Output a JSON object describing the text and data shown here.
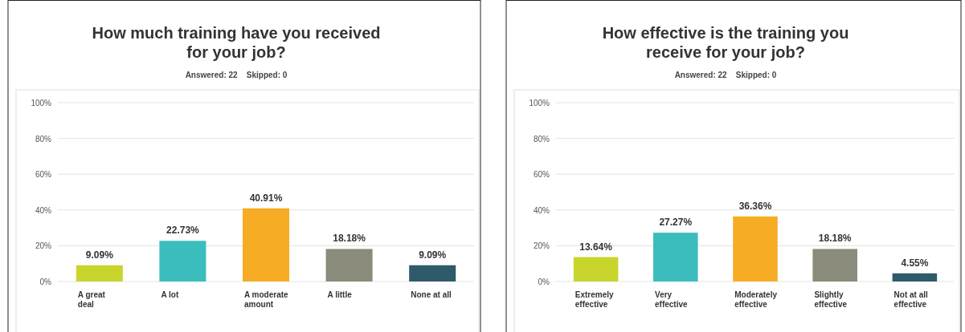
{
  "chart_data": [
    {
      "type": "bar",
      "title": "How much training have you received for your job?",
      "subtitle": "Answered: 22    Skipped: 0",
      "categories": [
        "A great deal",
        "A lot",
        "A moderate amount",
        "A little",
        "None at all"
      ],
      "values": [
        9.09,
        22.73,
        40.91,
        18.18,
        9.09
      ],
      "colors": [
        "#c9d52d",
        "#3bbdbd",
        "#f6ac25",
        "#8b8b7b",
        "#2f5a6a"
      ],
      "value_labels": [
        "9.09%",
        "22.73%",
        "40.91%",
        "18.18%",
        "9.09%"
      ],
      "ylim": [
        0,
        100
      ],
      "yticks": [
        {
          "value": 0,
          "label": "0%"
        },
        {
          "value": 20,
          "label": "20%"
        },
        {
          "value": 40,
          "label": "40%"
        },
        {
          "value": 60,
          "label": "60%"
        },
        {
          "value": 80,
          "label": "80%"
        },
        {
          "value": 100,
          "label": "100%"
        }
      ],
      "grid": "y"
    },
    {
      "type": "bar",
      "title": "How effective is the training you receive for your job?",
      "subtitle": "Answered: 22    Skipped: 0",
      "categories": [
        "Extremely effective",
        "Very effective",
        "Moderately effective",
        "Slightly effective",
        "Not at all effective"
      ],
      "values": [
        13.64,
        27.27,
        36.36,
        18.18,
        4.55
      ],
      "colors": [
        "#c9d52d",
        "#3bbdbd",
        "#f6ac25",
        "#8b8b7b",
        "#2f5a6a"
      ],
      "value_labels": [
        "13.64%",
        "27.27%",
        "36.36%",
        "18.18%",
        "4.55%"
      ],
      "ylim": [
        0,
        100
      ],
      "yticks": [
        {
          "value": 0,
          "label": "0%"
        },
        {
          "value": 20,
          "label": "20%"
        },
        {
          "value": 40,
          "label": "40%"
        },
        {
          "value": 60,
          "label": "60%"
        },
        {
          "value": 80,
          "label": "80%"
        },
        {
          "value": 100,
          "label": "100%"
        }
      ],
      "grid": "y"
    }
  ]
}
